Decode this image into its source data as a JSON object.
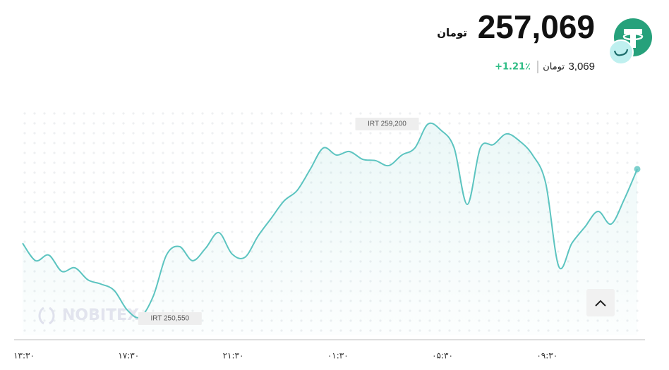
{
  "header": {
    "price": "257,069",
    "unit": "تومان",
    "change_amount": "3,069",
    "change_unit": "تومان",
    "change_percent": "+1.21٪"
  },
  "chart_data": {
    "type": "line",
    "color": "#5cc4c0",
    "watermark": "NOBITEX",
    "max_label": "IRT 259,200",
    "min_label": "IRT 250,550",
    "values": [
      253860,
      253080,
      253330,
      252600,
      252760,
      252220,
      252030,
      251750,
      250870,
      250550,
      251500,
      253330,
      253710,
      253080,
      253640,
      254340,
      253390,
      253230,
      254180,
      254970,
      255760,
      256230,
      257180,
      258130,
      257810,
      257970,
      257620,
      257560,
      257340,
      257810,
      258130,
      259200,
      258920,
      258130,
      255600,
      258130,
      258280,
      258760,
      258440,
      257810,
      256550,
      252820,
      253860,
      254590,
      255290,
      254720,
      255820,
      257180
    ],
    "xticks": [
      {
        "value": 0,
        "label": "۱۳:۳۰"
      },
      {
        "value": 8,
        "label": "۱۷:۳۰"
      },
      {
        "value": 16,
        "label": "۲۱:۳۰"
      },
      {
        "value": 24,
        "label": "۰۱:۳۰"
      },
      {
        "value": 32,
        "label": "۰۵:۳۰"
      },
      {
        "value": 40,
        "label": "۰۹:۳۰"
      }
    ]
  }
}
